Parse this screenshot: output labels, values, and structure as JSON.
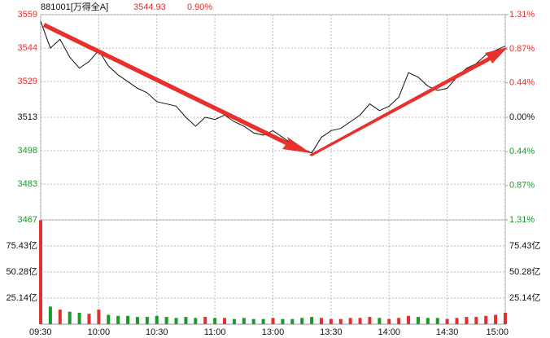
{
  "chart_data": [
    {
      "type": "line",
      "title": "881001[万得全A]",
      "last": "3544.93",
      "change": "0.90%",
      "color": "#111111",
      "header_color": "#e0312f",
      "values": [
        3556,
        3544,
        3548,
        3540,
        3535,
        3538,
        3543,
        3536,
        3532,
        3529,
        3526,
        3524,
        3520,
        3519,
        3518,
        3513,
        3509,
        3513,
        3512,
        3514,
        3511,
        3509,
        3506,
        3505,
        3507,
        3504,
        3501,
        3499,
        3497,
        3504,
        3507,
        3508,
        3511,
        3514,
        3519,
        3516,
        3518,
        3522,
        3533,
        3531,
        3527,
        3525,
        3526,
        3531,
        3535,
        3537,
        3541,
        3543,
        3544.93
      ],
      "xlim": [
        0,
        48
      ],
      "xticks": [
        {
          "value": 0,
          "label": "09:30"
        },
        {
          "value": 6,
          "label": "10:00"
        },
        {
          "value": 12,
          "label": "10:30"
        },
        {
          "value": 18,
          "label": "11:00"
        },
        {
          "value": 24,
          "label": "13:00"
        },
        {
          "value": 30,
          "label": "13:30"
        },
        {
          "value": 36,
          "label": "14:00"
        },
        {
          "value": 42,
          "label": "14:30"
        },
        {
          "value": 48,
          "label": "15:00"
        }
      ],
      "ylim": [
        3467,
        3559
      ],
      "yticks": [
        3559,
        3544,
        3529,
        3513,
        3498,
        3483,
        3467
      ],
      "ytick_colors": [
        "#e0312f",
        "#e0312f",
        "#e0312f",
        "#111111",
        "#1a9a2a",
        "#1a9a2a",
        "#1a9a2a"
      ],
      "y2lim": [
        -1.31,
        1.31
      ],
      "y2ticks": [
        {
          "value": 1.31,
          "label": "1.31%"
        },
        {
          "value": 0.87,
          "label": "0.87%"
        },
        {
          "value": 0.44,
          "label": "0.44%"
        },
        {
          "value": 0,
          "label": "0.00%"
        },
        {
          "value": -0.44,
          "label": "0.44%"
        },
        {
          "value": -0.87,
          "label": "0.87%"
        },
        {
          "value": -1.31,
          "label": "1.31%"
        }
      ],
      "y2tick_colors": [
        "#e0312f",
        "#e0312f",
        "#e0312f",
        "#111111",
        "#1a9a2a",
        "#1a9a2a",
        "#1a9a2a"
      ],
      "grid": true
    },
    {
      "type": "bar",
      "values": [
        100.3,
        17,
        14,
        12,
        11,
        10,
        14,
        9,
        8,
        8,
        7,
        7,
        8,
        7,
        6,
        7,
        6,
        7,
        6,
        6,
        5,
        6,
        5,
        5,
        6,
        5,
        5,
        6,
        7,
        6,
        5,
        5,
        6,
        6,
        7,
        6,
        5,
        6,
        8,
        7,
        6,
        6,
        5,
        6,
        7,
        7,
        8,
        9,
        11
      ],
      "colors": [
        "#e0312f",
        "#1a9a2a",
        "#e0312f",
        "#1a9a2a",
        "#1a9a2a",
        "#e0312f",
        "#e0312f",
        "#1a9a2a",
        "#1a9a2a",
        "#1a9a2a",
        "#1a9a2a",
        "#1a9a2a",
        "#1a9a2a",
        "#1a9a2a",
        "#1a9a2a",
        "#1a9a2a",
        "#1a9a2a",
        "#e0312f",
        "#1a9a2a",
        "#e0312f",
        "#1a9a2a",
        "#1a9a2a",
        "#1a9a2a",
        "#1a9a2a",
        "#e0312f",
        "#1a9a2a",
        "#1a9a2a",
        "#1a9a2a",
        "#1a9a2a",
        "#e0312f",
        "#e0312f",
        "#e0312f",
        "#e0312f",
        "#e0312f",
        "#e0312f",
        "#1a9a2a",
        "#e0312f",
        "#e0312f",
        "#e0312f",
        "#1a9a2a",
        "#1a9a2a",
        "#1a9a2a",
        "#e0312f",
        "#e0312f",
        "#e0312f",
        "#e0312f",
        "#e0312f",
        "#e0312f",
        "#e0312f"
      ],
      "ylim": [
        0,
        100.57
      ],
      "yticks": [
        {
          "value": 75.43,
          "label": "75.43亿"
        },
        {
          "value": 50.28,
          "label": "50.28亿"
        },
        {
          "value": 25.14,
          "label": "25.14亿"
        }
      ],
      "grid": true
    }
  ]
}
